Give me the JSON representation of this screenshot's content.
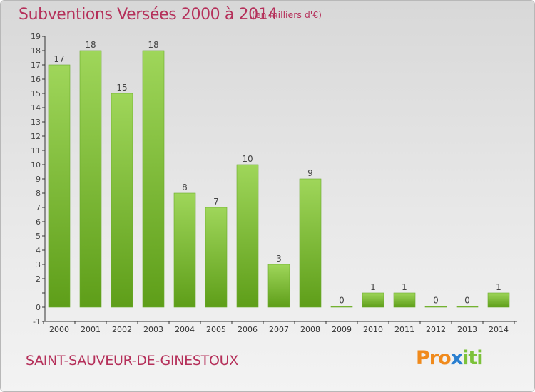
{
  "title": "Subventions Versées 2000 à 2014",
  "subtitle": "(en milliers d'€)",
  "commune": "SAINT-SAUVEUR-DE-GINESTOUX",
  "logo": {
    "letters": [
      "P",
      "r",
      "o",
      "x",
      "i",
      "t",
      "i"
    ],
    "colors": [
      "#f08a1c",
      "#f08a1c",
      "#f08a1c",
      "#2a7fd0",
      "#7cc23a",
      "#7cc23a",
      "#7cc23a"
    ]
  },
  "colors": {
    "title": "#b5305a",
    "bar_top": "#9fd65a",
    "bar_bottom": "#5e9e19",
    "axis": "#333333"
  },
  "chart_data": {
    "type": "bar",
    "title": "Subventions Versées 2000 à 2014",
    "subtitle": "(en milliers d'€)",
    "categories": [
      "2000",
      "2001",
      "2002",
      "2003",
      "2004",
      "2005",
      "2006",
      "2007",
      "2008",
      "2009",
      "2010",
      "2011",
      "2012",
      "2013",
      "2014"
    ],
    "values": [
      17,
      18,
      15,
      18,
      8,
      7,
      10,
      3,
      9,
      0,
      1,
      1,
      0,
      0,
      1
    ],
    "ylim": [
      -1,
      19
    ],
    "yticks": [
      "-1",
      "0",
      "",
      "2",
      "3",
      "4",
      "5",
      "6",
      "7",
      "8",
      "9",
      "10",
      "11",
      "12",
      "13",
      "14",
      "15",
      "16",
      "17",
      "18",
      "19"
    ],
    "grid": false,
    "xlabel": "",
    "ylabel": ""
  }
}
